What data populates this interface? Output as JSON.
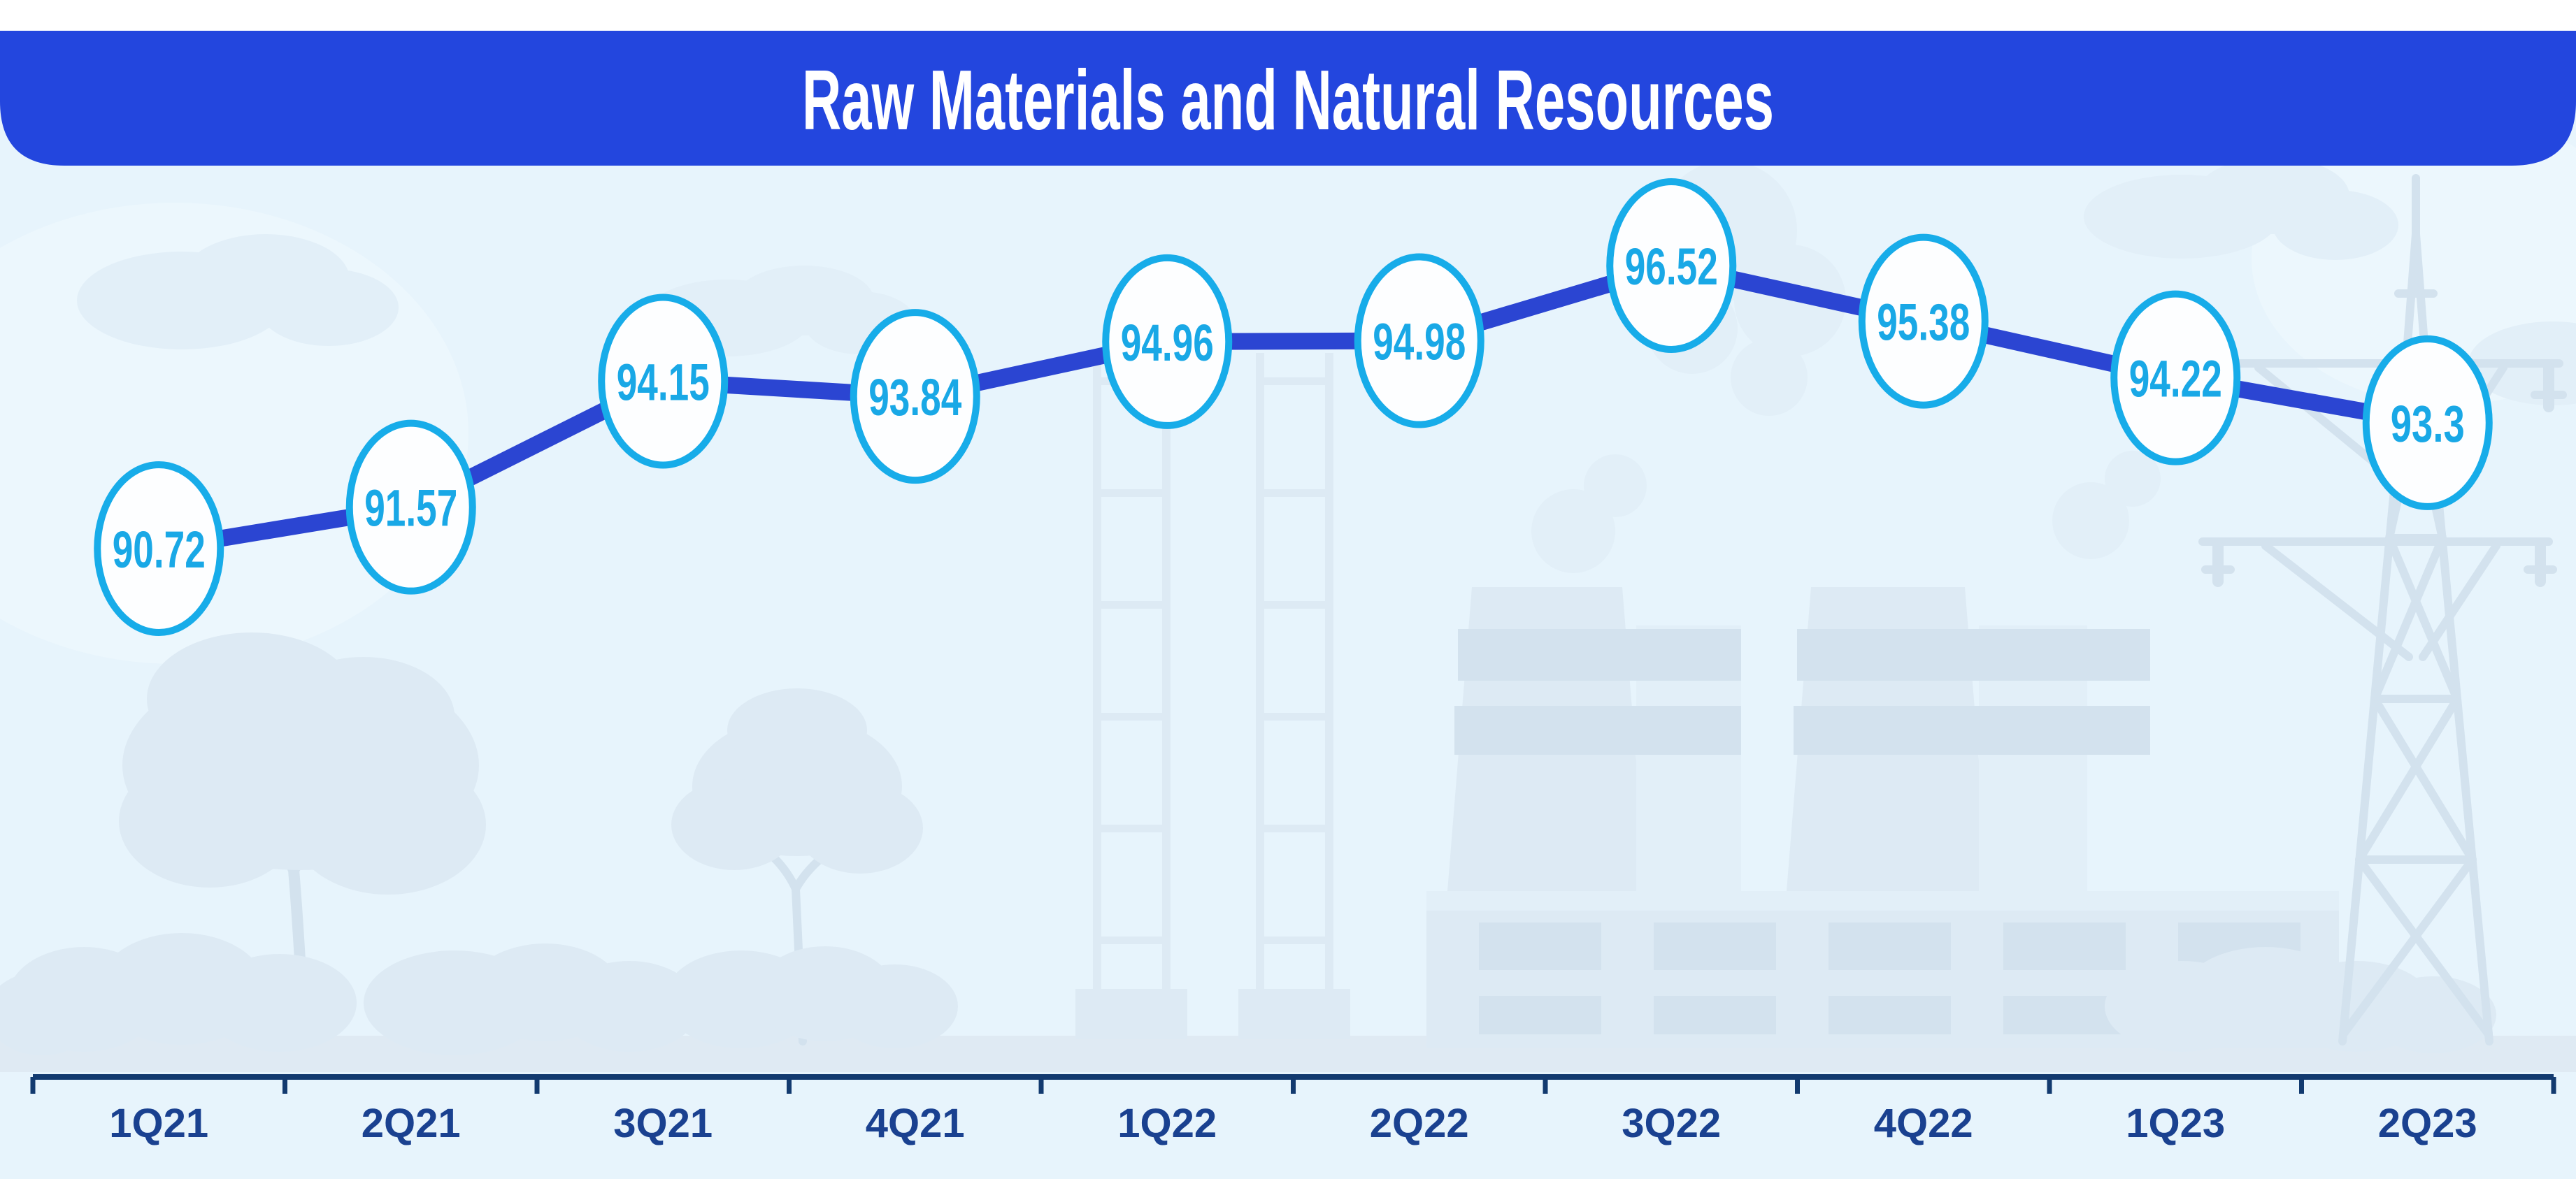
{
  "title": "Raw Materials and Natural Resources",
  "chart_data": {
    "type": "line",
    "title": "Raw Materials and Natural Resources",
    "categories": [
      "1Q21",
      "2Q21",
      "3Q21",
      "4Q21",
      "1Q22",
      "2Q22",
      "3Q22",
      "4Q22",
      "1Q23",
      "2Q23"
    ],
    "values": [
      90.72,
      91.57,
      94.15,
      93.84,
      94.96,
      94.98,
      96.52,
      95.38,
      94.22,
      93.3
    ],
    "point_labels": [
      "90.72",
      "91.57",
      "94.15",
      "93.84",
      "94.96",
      "94.98",
      "96.52",
      "95.38",
      "94.22",
      "93.3"
    ],
    "xlabel": "",
    "ylabel": "",
    "ylim_implied": [
      90,
      97
    ],
    "grid": false,
    "legend": false,
    "y_axis_visible": false,
    "marker_style": "labeled-circle",
    "x_axis_ticks_between_categories": true
  },
  "colors": {
    "page_top": "#FFFFFF",
    "background": "#E7F4FC",
    "banner": "#2346DE",
    "banner_title": "#FFFFFF",
    "line": "#2B45D2",
    "marker_border": "#17ACE9",
    "marker_fill": "#FDFEFF",
    "value_text": "#19A8E6",
    "axis": "#123A6F",
    "axis_label": "#1A4190",
    "silhouette": "#DDEAF4",
    "silhouette_light": "#E2EFF8",
    "silhouette_dark": "#D3E2EE",
    "ground": "#DFEAF3",
    "cloud": "#ECF7FD"
  },
  "illustration": {
    "elements": [
      "clouds",
      "smoke",
      "tree",
      "tree",
      "bushes",
      "scaffold-tower",
      "scaffold-tower",
      "factory-cooling-towers",
      "factory-building",
      "transmission-tower",
      "ground"
    ]
  }
}
